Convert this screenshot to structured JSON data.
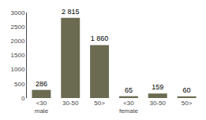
{
  "chart_data": {
    "type": "bar",
    "categories": [
      "<30\nmale",
      "30-50",
      "50>",
      "<30\nfemale",
      "30-50",
      "50>"
    ],
    "values": [
      286,
      2815,
      1860,
      65,
      159,
      60
    ],
    "value_labels": [
      "286",
      "2 815",
      "1 860",
      "65",
      "159",
      "60"
    ],
    "color": "#6b6b52",
    "ylim": [
      0,
      3000
    ],
    "yticks": [
      0,
      500,
      1000,
      1500,
      2000,
      2500,
      3000
    ],
    "grid": false,
    "data_labels": true
  }
}
